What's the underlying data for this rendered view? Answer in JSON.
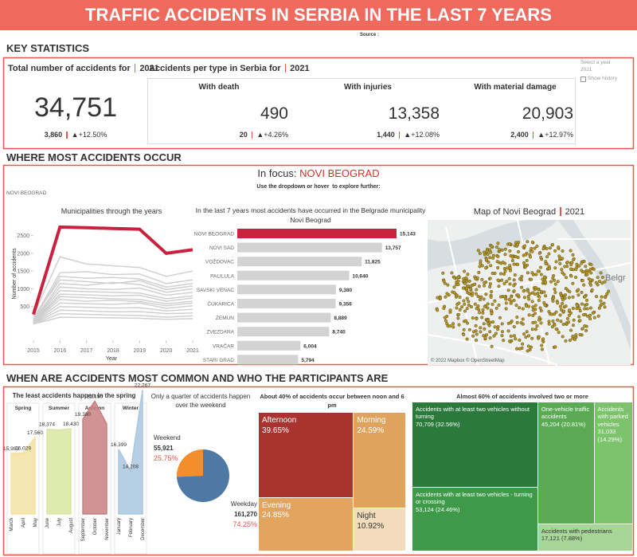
{
  "header": {
    "title": "TRAFFIC ACCIDENTS IN SERBIA IN THE LAST 7 YEARS",
    "source": "Source :"
  },
  "sections": [
    "KEY STATISTICS",
    "WHERE MOST ACCIDENTS OCCUR",
    "WHEN ARE ACCIDENTS MOST COMMON AND WHO THE PARTICIPANTS ARE"
  ],
  "key_statistics": {
    "total": {
      "label": "Total number of accidents for",
      "year": "2021",
      "value": "34,751",
      "change": "3,860",
      "change_pct": "▲+12.50%"
    },
    "types": {
      "label": "Accidents per type in Serbia for",
      "year": "2021",
      "items": [
        {
          "name": "With death",
          "value": "490",
          "change": "20",
          "change_pct": "▲+4.26%"
        },
        {
          "name": "With injuries",
          "value": "13,358",
          "change": "1,440",
          "change_pct": "▲+12.08%"
        },
        {
          "name": "With material damage",
          "value": "20,903",
          "change": "2,400",
          "change_pct": "▲+12.97%"
        }
      ]
    },
    "year_filter": {
      "label": "Select a year",
      "value": "2021",
      "option": "Show history"
    }
  },
  "focus": {
    "label": "In focus:",
    "name": "NOVI BEOGRAD",
    "hint": "Use the dropdown or hover  to explore further:",
    "dropdown": "NOVI BEOGRAD"
  },
  "map": {
    "title": "Map of Novi Beograd",
    "year": "2021",
    "place_label": "Belgr",
    "attribution": "© 2022 Mapbox © OpenStreetMap"
  },
  "chart_data": [
    {
      "type": "line",
      "title": "Municipalities through the years",
      "x_label": "Year",
      "y_label": "Number of accidents",
      "x": [
        2015,
        2016,
        2017,
        2018,
        2019,
        2020,
        2021
      ],
      "xlim": [
        2015,
        2021
      ],
      "xticks": [
        2015,
        2016,
        2017,
        2018,
        2019,
        2020,
        2021
      ],
      "ylim": [
        0,
        2850
      ],
      "yticks": [
        500,
        1000,
        1500,
        2000,
        2500
      ],
      "series": [
        {
          "color": "#d0d0d0",
          "values": [
            250,
            1900,
            1700,
            1650,
            1600,
            1350,
            1500
          ]
        },
        {
          "color": "#d0d0d0",
          "values": [
            150,
            1450,
            1480,
            1400,
            1420,
            1150,
            1250
          ]
        },
        {
          "color": "#d0d0d0",
          "values": [
            120,
            1350,
            1300,
            1320,
            1280,
            1050,
            1150
          ]
        },
        {
          "color": "#d0d0d0",
          "values": [
            200,
            1250,
            1200,
            1150,
            1230,
            980,
            1080
          ]
        },
        {
          "color": "#d0d0d0",
          "values": [
            100,
            1150,
            1100,
            1180,
            1120,
            900,
            1000
          ]
        },
        {
          "color": "#d0d0d0",
          "values": [
            90,
            1050,
            1000,
            980,
            1020,
            820,
            900
          ]
        },
        {
          "color": "#d0d0d0",
          "values": [
            80,
            950,
            920,
            900,
            880,
            720,
            800
          ]
        },
        {
          "color": "#d0d0d0",
          "values": [
            70,
            850,
            830,
            800,
            820,
            650,
            740
          ]
        },
        {
          "color": "#d0d0d0",
          "values": [
            60,
            780,
            750,
            720,
            700,
            580,
            650
          ]
        },
        {
          "color": "#d0d0d0",
          "values": [
            50,
            700,
            650,
            680,
            640,
            520,
            600
          ]
        },
        {
          "color": "#d0d0d0",
          "values": [
            40,
            600,
            580,
            560,
            600,
            450,
            520
          ]
        },
        {
          "color": "#d0d0d0",
          "values": [
            30,
            500,
            480,
            460,
            470,
            380,
            420
          ]
        },
        {
          "color": "#d0d0d0",
          "values": [
            20,
            400,
            380,
            350,
            360,
            300,
            320
          ]
        },
        {
          "color": "#d0d0d0",
          "values": [
            10,
            300,
            280,
            260,
            250,
            200,
            240
          ]
        },
        {
          "color": "#d0d0d0",
          "values": [
            10,
            200,
            190,
            180,
            170,
            140,
            160
          ]
        },
        {
          "color": "#c8233e",
          "values": [
            280,
            2740,
            2720,
            2700,
            2680,
            2000,
            2100
          ]
        }
      ]
    },
    {
      "type": "bar",
      "orientation": "horizontal",
      "title": "In the last 7 years most accidents have occurred in the Belgrade municipality",
      "subtitle": "Novi Beograd",
      "categories": [
        "NOVI BEOGRAD",
        "NOVI SAD",
        "VOŽDOVAC",
        "PALILULA",
        "SAVSKI VENAC",
        "ČUKARICA",
        "ZEMUN",
        "ZVEZDARA",
        "VRAČAR",
        "STARI GRAD"
      ],
      "values": [
        15143,
        13757,
        11825,
        10640,
        9380,
        9356,
        8889,
        8740,
        6004,
        5794
      ],
      "value_labels": [
        "15,143",
        "13,757",
        "11,825",
        "10,640",
        "9,380",
        "9,356",
        "8,889",
        "8,740",
        "6,004",
        "5,794"
      ],
      "color": "#d3d3d3",
      "highlight_color": "#c8233e"
    },
    {
      "type": "area",
      "title": "The least accidents happen in the spring",
      "ylim": [
        10000,
        23000
      ],
      "series": [
        {
          "name": "Spring",
          "color": "#f3e1a1",
          "categories": [
            "March",
            "April",
            "May"
          ],
          "values": [
            15983,
            16029,
            17560
          ],
          "value_labels": [
            "15,983",
            "16,029",
            "17,560"
          ]
        },
        {
          "name": "Summer",
          "color": "#d9e6a3",
          "categories": [
            "June",
            "July",
            "August"
          ],
          "values": [
            18374,
            18300,
            18430
          ],
          "value_labels": [
            "18,374",
            null,
            "18,430"
          ]
        },
        {
          "name": "Autumn",
          "color": "#c98080",
          "categories": [
            "September",
            "October",
            "November"
          ],
          "values": [
            19380,
            21155,
            18900
          ],
          "value_labels": [
            "19,380",
            "21,155",
            null
          ]
        },
        {
          "name": "Winter",
          "color": "#a9c7e0",
          "categories": [
            "January",
            "February",
            "December"
          ],
          "values": [
            16399,
            14208,
            22267
          ],
          "value_labels": [
            "16,399",
            "14,208",
            "22,267"
          ]
        }
      ]
    },
    {
      "type": "pie",
      "title": "Only a quarter of accidents happen over the weekend",
      "categories": [
        "Weekend",
        "Weekday"
      ],
      "values": [
        25.75,
        74.25
      ],
      "value_labels": [
        "25.75%",
        "74.25%"
      ],
      "count_labels": [
        "55,921",
        "161,270"
      ],
      "colors": [
        "#f28e2b",
        "#4e79a7"
      ]
    },
    {
      "type": "treemap",
      "title": "About 40% of accidents occur between  noon and 6 pm",
      "categories": [
        "Afternoon",
        "Morning",
        "Evening",
        "Night"
      ],
      "values": [
        39.65,
        24.59,
        24.85,
        10.92
      ],
      "value_labels": [
        "39.65%",
        "24.59%",
        "24.85%",
        "10.92%"
      ],
      "colors": [
        "#a8332f",
        "#e0a35e",
        "#e3a460",
        "#f2dcbc"
      ]
    },
    {
      "type": "treemap",
      "title": "Almost 60% of accidents involved two or more vehicles",
      "categories": [
        "Accidents with at least two vehicles without turning",
        "Accidents with at least two vehicles - turning or crossing",
        "One-vehicle traffic accidents",
        "Accidents with parked vehicles",
        "Accidents with pedestrians"
      ],
      "values": [
        70709,
        53124,
        45204,
        31033,
        17121
      ],
      "value_labels": [
        "70,709 (32.56%)",
        "53,124 (24.46%)",
        "45,204 (20.81%)",
        "31,033 (14.29%)",
        "17,121 (7.88%)"
      ],
      "colors": [
        "#2b7a3b",
        "#3e9a49",
        "#5aab54",
        "#7dc26c",
        "#a7d698"
      ]
    }
  ]
}
